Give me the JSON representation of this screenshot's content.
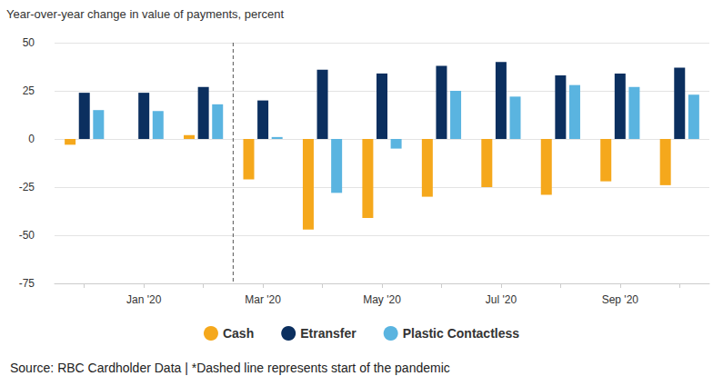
{
  "chart_data": {
    "type": "bar",
    "title": "Year-over-year change in value of payments, percent",
    "caption": "Source: RBC Cardholder Data | *Dashed line represents start of the pandemic",
    "categories": [
      null,
      "Jan '20",
      null,
      "Mar '20",
      null,
      "May '20",
      null,
      "Jul '20",
      null,
      "Sep '20",
      null
    ],
    "series": [
      {
        "name": "Cash",
        "color": "#f5a81c",
        "values": [
          -3,
          0,
          2,
          -21,
          -47,
          -41,
          -30,
          -25,
          -29,
          -22,
          -24
        ]
      },
      {
        "name": "Etransfer",
        "color": "#0b2f5f",
        "values": [
          24,
          24,
          27,
          20,
          36,
          34,
          38,
          40,
          33,
          34,
          37
        ]
      },
      {
        "name": "Plastic Contactless",
        "color": "#5ab4e0",
        "values": [
          15,
          14.5,
          18,
          1,
          -28,
          -5,
          25,
          22,
          28,
          27,
          23
        ]
      }
    ],
    "vlines": [
      {
        "x": 2.5,
        "line_style": "dashed"
      }
    ],
    "ylim": [
      -75,
      50
    ],
    "yticks": [
      -75,
      -50,
      -25,
      0,
      25,
      50
    ],
    "grid": true,
    "legend": "bottom"
  }
}
